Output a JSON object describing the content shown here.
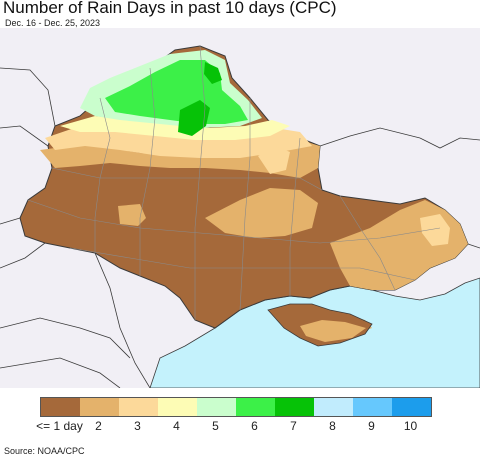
{
  "title": "Number of Rain Days in past 10 days (CPC)",
  "subtitle": "Dec. 16 - Dec. 25, 2023",
  "source": "Source: NOAA/CPC",
  "legend": {
    "labels": [
      "<= 1 day",
      "2",
      "3",
      "4",
      "5",
      "6",
      "7",
      "8",
      "9",
      "10"
    ],
    "colors": [
      "#a5693a",
      "#e4b26b",
      "#fcd99a",
      "#fdfcb5",
      "#cafecd",
      "#3cf048",
      "#06c207",
      "#c1ecfd",
      "#66c8fd",
      "#1c9dec"
    ]
  },
  "map_colors": {
    "land_outside": "#f1eff5",
    "sea": "#c4f2fc",
    "borders": "#3a3a3a",
    "admin_lines": "#8a8a8a"
  }
}
